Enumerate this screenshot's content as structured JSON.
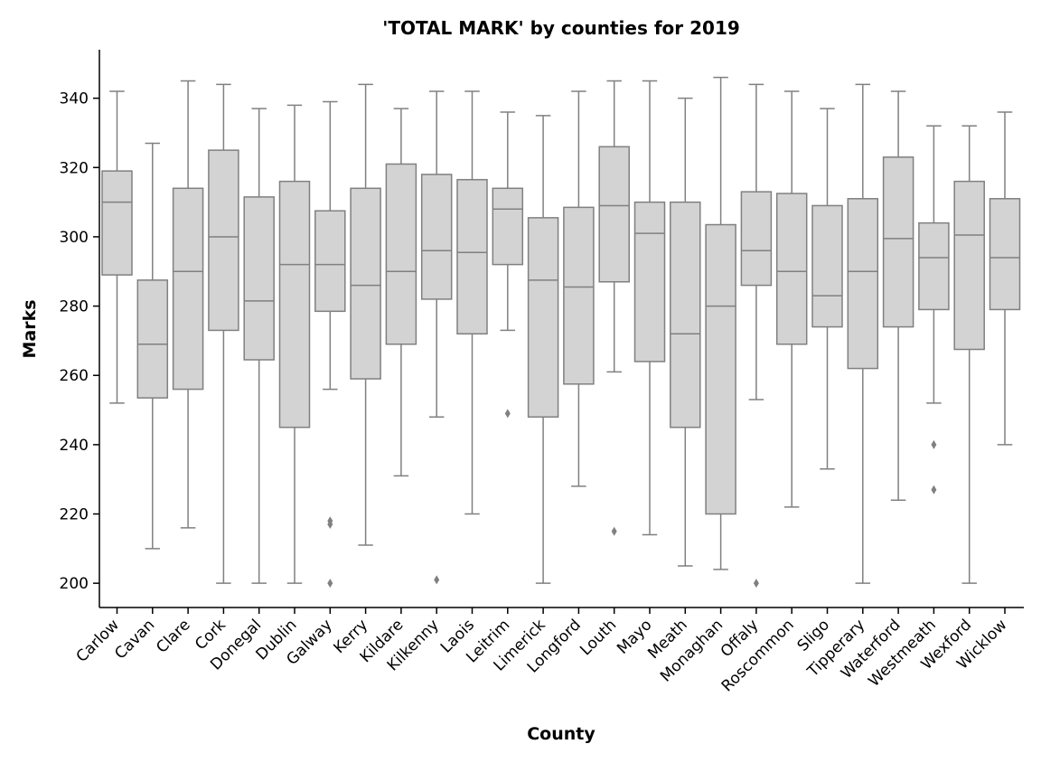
{
  "chart_data": {
    "type": "boxplot",
    "title": "'TOTAL MARK' by counties for 2019",
    "xlabel": "County",
    "ylabel": "Marks",
    "ylim": [
      193,
      354
    ],
    "yticks": [
      200,
      220,
      240,
      260,
      280,
      300,
      320,
      340
    ],
    "grid": false,
    "box_color": "#d3d3d3",
    "line_color": "#808080",
    "categories": [
      "Carlow",
      "Cavan",
      "Clare",
      "Cork",
      "Donegal",
      "Dublin",
      "Galway",
      "Kerry",
      "Kildare",
      "Kilkenny",
      "Laois",
      "Leitrim",
      "Limerick",
      "Longford",
      "Louth",
      "Mayo",
      "Meath",
      "Monaghan",
      "Offaly",
      "Roscommon",
      "Sligo",
      "Tipperary",
      "Waterford",
      "Westmeath",
      "Wexford",
      "Wicklow"
    ],
    "boxes": [
      {
        "whislo": 252,
        "q1": 289,
        "med": 310,
        "q3": 319,
        "whishi": 342,
        "fliers": []
      },
      {
        "whislo": 210,
        "q1": 253.5,
        "med": 269,
        "q3": 287.5,
        "whishi": 327,
        "fliers": []
      },
      {
        "whislo": 216,
        "q1": 256,
        "med": 290,
        "q3": 314,
        "whishi": 345,
        "fliers": []
      },
      {
        "whislo": 200,
        "q1": 273,
        "med": 300,
        "q3": 325,
        "whishi": 344,
        "fliers": []
      },
      {
        "whislo": 200,
        "q1": 264.5,
        "med": 281.5,
        "q3": 311.5,
        "whishi": 337,
        "fliers": []
      },
      {
        "whislo": 200,
        "q1": 245,
        "med": 292,
        "q3": 316,
        "whishi": 338,
        "fliers": []
      },
      {
        "whislo": 256,
        "q1": 278.5,
        "med": 292,
        "q3": 307.5,
        "whishi": 339,
        "fliers": [
          218,
          217,
          200
        ]
      },
      {
        "whislo": 211,
        "q1": 259,
        "med": 286,
        "q3": 314,
        "whishi": 344,
        "fliers": []
      },
      {
        "whislo": 231,
        "q1": 269,
        "med": 290,
        "q3": 321,
        "whishi": 337,
        "fliers": []
      },
      {
        "whislo": 248,
        "q1": 282,
        "med": 296,
        "q3": 318,
        "whishi": 342,
        "fliers": [
          201
        ]
      },
      {
        "whislo": 220,
        "q1": 272,
        "med": 295.5,
        "q3": 316.5,
        "whishi": 342,
        "fliers": []
      },
      {
        "whislo": 273,
        "q1": 292,
        "med": 308,
        "q3": 314,
        "whishi": 336,
        "fliers": [
          249
        ]
      },
      {
        "whislo": 200,
        "q1": 248,
        "med": 287.5,
        "q3": 305.5,
        "whishi": 335,
        "fliers": []
      },
      {
        "whislo": 228,
        "q1": 257.5,
        "med": 285.5,
        "q3": 308.5,
        "whishi": 342,
        "fliers": []
      },
      {
        "whislo": 261,
        "q1": 287,
        "med": 309,
        "q3": 326,
        "whishi": 345,
        "fliers": [
          215
        ]
      },
      {
        "whislo": 214,
        "q1": 264,
        "med": 301,
        "q3": 310,
        "whishi": 345,
        "fliers": []
      },
      {
        "whislo": 205,
        "q1": 245,
        "med": 272,
        "q3": 310,
        "whishi": 340,
        "fliers": []
      },
      {
        "whislo": 204,
        "q1": 220,
        "med": 280,
        "q3": 303.5,
        "whishi": 346,
        "fliers": []
      },
      {
        "whislo": 253,
        "q1": 286,
        "med": 296,
        "q3": 313,
        "whishi": 344,
        "fliers": [
          200
        ]
      },
      {
        "whislo": 222,
        "q1": 269,
        "med": 290,
        "q3": 312.5,
        "whishi": 342,
        "fliers": []
      },
      {
        "whislo": 233,
        "q1": 274,
        "med": 283,
        "q3": 309,
        "whishi": 337,
        "fliers": []
      },
      {
        "whislo": 200,
        "q1": 262,
        "med": 290,
        "q3": 311,
        "whishi": 344,
        "fliers": []
      },
      {
        "whislo": 224,
        "q1": 274,
        "med": 299.5,
        "q3": 323,
        "whishi": 342,
        "fliers": []
      },
      {
        "whislo": 252,
        "q1": 279,
        "med": 294,
        "q3": 304,
        "whishi": 332,
        "fliers": [
          240,
          227
        ]
      },
      {
        "whislo": 200,
        "q1": 267.5,
        "med": 300.5,
        "q3": 316,
        "whishi": 332,
        "fliers": []
      },
      {
        "whislo": 240,
        "q1": 279,
        "med": 294,
        "q3": 311,
        "whishi": 336,
        "fliers": []
      }
    ]
  }
}
